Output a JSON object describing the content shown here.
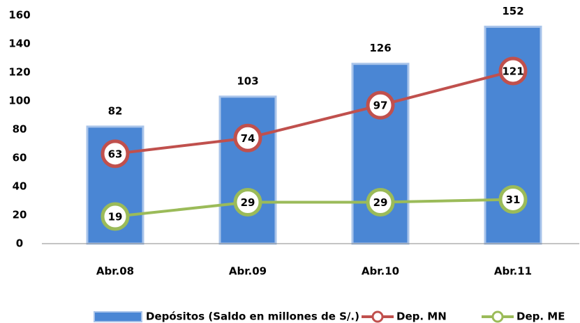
{
  "chart_data": {
    "type": "combo",
    "categories": [
      "Abr.08",
      "Abr.09",
      "Abr.10",
      "Abr.11"
    ],
    "series": [
      {
        "name": "Depósitos (Saldo en millones de S/.)",
        "type": "bar",
        "color": "#4a86d4",
        "values": [
          82,
          103,
          126,
          152
        ]
      },
      {
        "name": "Dep. MN",
        "type": "line",
        "color": "#c0504d",
        "values": [
          63,
          74,
          97,
          121
        ]
      },
      {
        "name": "Dep. ME",
        "type": "line",
        "color": "#9bbb59",
        "values": [
          19,
          29,
          29,
          31
        ]
      }
    ],
    "ylim": [
      0,
      160
    ],
    "yticks": [
      0,
      20,
      40,
      60,
      80,
      100,
      120,
      140,
      160
    ],
    "grid": false,
    "legend": "bottom"
  }
}
